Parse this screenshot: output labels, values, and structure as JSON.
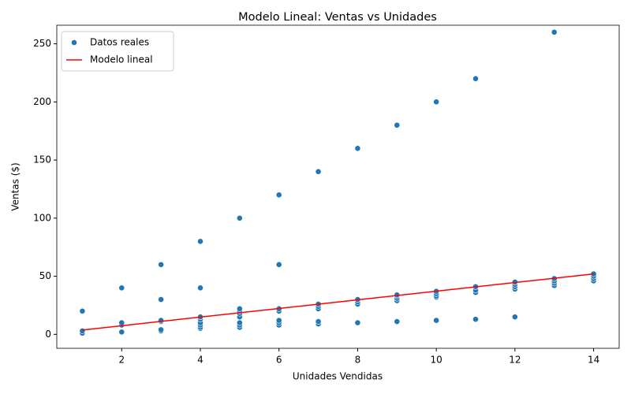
{
  "chart_data": {
    "type": "scatter",
    "title": "Modelo Lineal: Ventas vs Unidades",
    "xlabel": "Unidades Vendidas",
    "ylabel": "Ventas ($)",
    "xlim": [
      0.35,
      14.65
    ],
    "ylim": [
      -12,
      266
    ],
    "xticks": [
      2,
      4,
      6,
      8,
      10,
      12,
      14
    ],
    "yticks": [
      0,
      50,
      100,
      150,
      200,
      250
    ],
    "grid": false,
    "legend": "upper left",
    "series": [
      {
        "name": "Datos reales",
        "type": "scatter",
        "color": "#1f77b4",
        "x": [
          1,
          2,
          3,
          4,
          5,
          6,
          7,
          8,
          9,
          10,
          11,
          13,
          3,
          4,
          6,
          1,
          1,
          2,
          2,
          2,
          3,
          3,
          3,
          3,
          4,
          4,
          4,
          4,
          4,
          4,
          5,
          5,
          5,
          5,
          5,
          5,
          5,
          6,
          6,
          6,
          6,
          6,
          7,
          7,
          7,
          7,
          7,
          8,
          8,
          8,
          8,
          9,
          9,
          9,
          9,
          9,
          10,
          10,
          10,
          10,
          10,
          11,
          11,
          11,
          11,
          12,
          12,
          12,
          12,
          12,
          13,
          13,
          13,
          13,
          14,
          14,
          14,
          14
        ],
        "values": [
          20,
          40,
          60,
          80,
          100,
          120,
          140,
          160,
          180,
          200,
          220,
          260,
          30,
          40,
          60,
          1,
          3,
          2,
          8,
          10,
          3,
          4,
          11,
          12,
          5,
          6,
          8,
          10,
          13,
          15,
          6,
          8,
          10,
          15,
          18,
          20,
          22,
          8,
          10,
          12,
          20,
          22,
          9,
          11,
          22,
          24,
          26,
          10,
          26,
          28,
          30,
          11,
          29,
          31,
          33,
          34,
          12,
          32,
          33,
          35,
          37,
          13,
          36,
          38,
          41,
          15,
          39,
          41,
          43,
          45,
          42,
          44,
          46,
          48,
          46,
          48,
          50,
          52
        ]
      },
      {
        "name": "Modelo lineal",
        "type": "line",
        "color": "#ff0000",
        "x": [
          1,
          14
        ],
        "values": [
          3.7,
          52.0
        ]
      }
    ]
  }
}
